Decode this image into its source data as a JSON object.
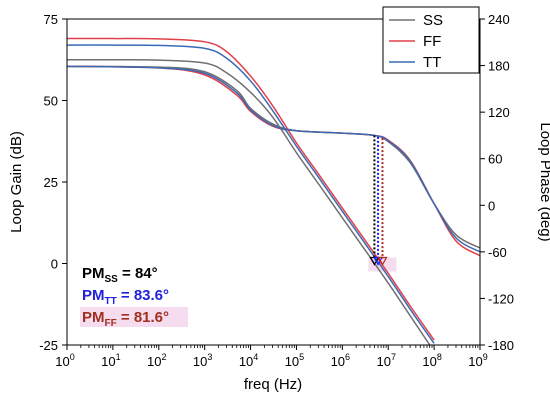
{
  "chart_data": {
    "type": "line",
    "title": "",
    "xlabel": "freq (Hz)",
    "ylabel_left": "Loop Gain (dB)",
    "ylabel_right": "Loop Phase (deg)",
    "x_scale": "log",
    "xlim": [
      1,
      1000000000
    ],
    "ylim_left": [
      -25,
      75
    ],
    "ylim_right": [
      -180,
      240
    ],
    "x_ticks": [
      {
        "base": "10",
        "exp": "0",
        "value": 1
      },
      {
        "base": "10",
        "exp": "1",
        "value": 10
      },
      {
        "base": "10",
        "exp": "2",
        "value": 100
      },
      {
        "base": "10",
        "exp": "3",
        "value": 1000
      },
      {
        "base": "10",
        "exp": "4",
        "value": 10000
      },
      {
        "base": "10",
        "exp": "5",
        "value": 100000
      },
      {
        "base": "10",
        "exp": "6",
        "value": 1000000
      },
      {
        "base": "10",
        "exp": "7",
        "value": 10000000
      },
      {
        "base": "10",
        "exp": "8",
        "value": 100000000
      },
      {
        "base": "10",
        "exp": "9",
        "value": 1000000000
      }
    ],
    "y_left_ticks": [
      "-25",
      "0",
      "25",
      "50",
      "75"
    ],
    "y_right_ticks": [
      "-180",
      "-120",
      "-60",
      "0",
      "60",
      "120",
      "180",
      "240"
    ],
    "grid": false,
    "legend_position": "top-right",
    "series": [
      {
        "name": "SS",
        "color": "#707070",
        "gain": {
          "x": [
            1,
            10,
            100,
            1000,
            3000,
            10000,
            30000,
            100000,
            300000,
            1000000,
            3000000,
            10000000,
            30000000,
            100000000
          ],
          "y": [
            62.5,
            62.5,
            62.4,
            61.5,
            58.5,
            52.5,
            45,
            34,
            24.5,
            14,
            4.5,
            -6,
            -16,
            -27
          ]
        },
        "phase": {
          "x": [
            1,
            100,
            1000,
            5000,
            10000,
            30000,
            100000,
            1000000,
            5000000,
            10000000,
            30000000,
            100000000,
            300000000,
            1000000000
          ],
          "y": [
            179,
            178,
            172,
            148,
            125,
            105,
            96,
            93,
            90,
            82,
            55,
            2,
            -38,
            -55
          ]
        }
      },
      {
        "name": "FF",
        "color": "#e0404a",
        "gain": {
          "x": [
            1,
            10,
            100,
            1000,
            3000,
            10000,
            30000,
            100000,
            300000,
            1000000,
            3000000,
            10000000,
            30000000,
            100000000
          ],
          "y": [
            69,
            69,
            68.9,
            68,
            65,
            57.5,
            48.5,
            37,
            27.5,
            17,
            7.5,
            -3,
            -13,
            -23.5
          ]
        },
        "phase": {
          "x": [
            1,
            100,
            1000,
            5000,
            10000,
            30000,
            100000,
            1000000,
            5000000,
            10000000,
            30000000,
            100000000,
            300000000,
            1000000000
          ],
          "y": [
            179,
            177,
            168,
            142,
            121,
            102,
            96,
            93,
            90,
            84,
            58,
            2,
            -46,
            -65
          ]
        }
      },
      {
        "name": "TT",
        "color": "#3a6ab5",
        "gain": {
          "x": [
            1,
            10,
            100,
            1000,
            3000,
            10000,
            30000,
            100000,
            300000,
            1000000,
            3000000,
            10000000,
            30000000,
            100000000
          ],
          "y": [
            67,
            67,
            66.9,
            66,
            63,
            56,
            47,
            36,
            26.5,
            16,
            6.5,
            -4,
            -14,
            -24.5
          ]
        },
        "phase": {
          "x": [
            1,
            100,
            1000,
            5000,
            10000,
            30000,
            100000,
            1000000,
            5000000,
            10000000,
            30000000,
            100000000,
            300000000,
            1000000000
          ],
          "y": [
            179,
            177,
            170,
            145,
            123,
            103,
            96,
            93,
            90,
            83,
            57,
            2,
            -42,
            -60
          ]
        }
      }
    ],
    "markers": [
      {
        "name": "SS",
        "x": 5000000,
        "color": "#000000"
      },
      {
        "name": "TT",
        "x": 6000000,
        "color": "#1a1aff"
      },
      {
        "name": "FF",
        "x": 7500000,
        "color": "#b02818"
      }
    ],
    "annotations": [
      {
        "prefix": "PM",
        "sub": "SS",
        "suffix": " = 84°",
        "color": "#000000",
        "highlight": ""
      },
      {
        "prefix": "PM",
        "sub": "TT",
        "suffix": " = 83.6°",
        "color": "#2222dd",
        "highlight": ""
      },
      {
        "prefix": "PM",
        "sub": "FF",
        "suffix": " = 81.6°",
        "color": "#a03020",
        "highlight": "#f6dcef"
      }
    ]
  }
}
